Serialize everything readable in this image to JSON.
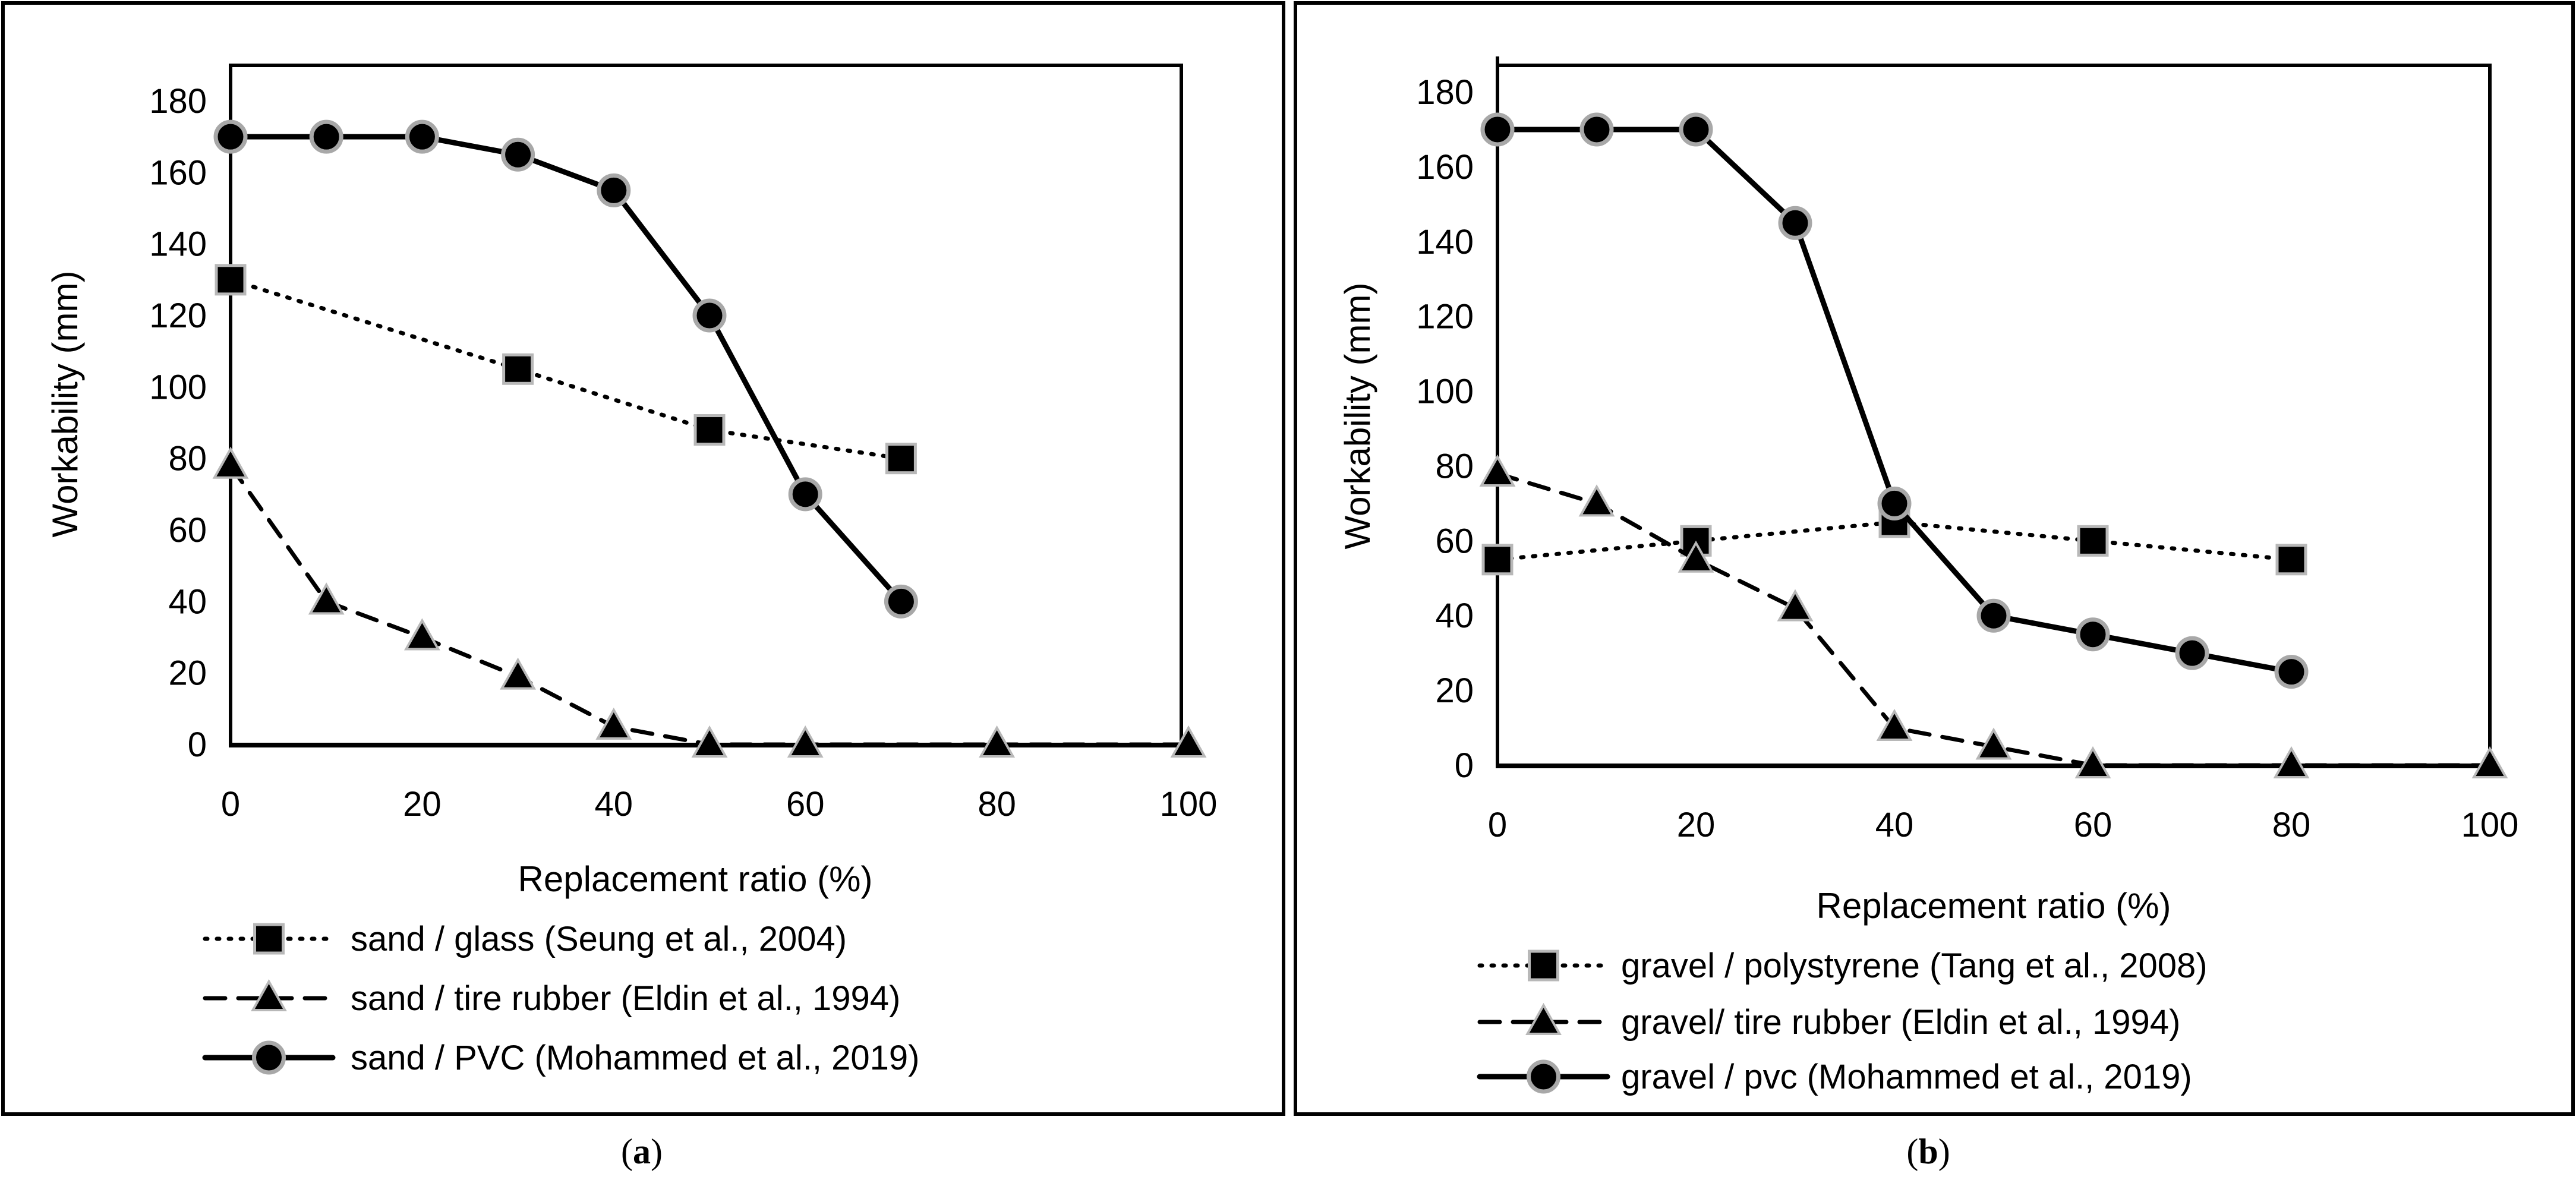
{
  "chart_data": [
    {
      "id": "a",
      "type": "line",
      "caption_letter": "a",
      "xlabel": "Replacement ratio (%)",
      "ylabel": "Workability (mm)",
      "xlim": [
        0,
        100
      ],
      "ylim": [
        0,
        180
      ],
      "xticks": [
        0,
        20,
        40,
        60,
        80,
        100
      ],
      "yticks": [
        0,
        20,
        40,
        60,
        80,
        100,
        120,
        140,
        160,
        180
      ],
      "series": [
        {
          "name": "sand / glass (Seung et al., 2004)",
          "style": "dotted",
          "marker": "square",
          "color": "#000000",
          "x": [
            0,
            30,
            50,
            70
          ],
          "y": [
            130,
            105,
            88,
            80
          ]
        },
        {
          "name": "sand / tire rubber (Eldin et al., 1994)",
          "style": "dashed",
          "marker": "triangle",
          "color": "#000000",
          "x": [
            0,
            10,
            20,
            30,
            40,
            50,
            60,
            80,
            100
          ],
          "y": [
            78,
            40,
            30,
            19,
            5,
            0,
            0,
            0,
            0
          ]
        },
        {
          "name": "sand / PVC (Mohammed et al., 2019)",
          "style": "solid",
          "marker": "circle",
          "color": "#000000",
          "x": [
            0,
            10,
            20,
            30,
            40,
            50,
            60,
            70
          ],
          "y": [
            170,
            170,
            170,
            165,
            155,
            120,
            70,
            40
          ]
        }
      ]
    },
    {
      "id": "b",
      "type": "line",
      "caption_letter": "b",
      "xlabel": "Replacement ratio (%)",
      "ylabel": "Workability  (mm)",
      "xlim": [
        0,
        100
      ],
      "ylim": [
        0,
        180
      ],
      "xticks": [
        0,
        20,
        40,
        60,
        80,
        100
      ],
      "yticks": [
        0,
        20,
        40,
        60,
        80,
        100,
        120,
        140,
        160,
        180
      ],
      "series": [
        {
          "name": "gravel / polystyrene (Tang et al., 2008)",
          "style": "dotted",
          "marker": "square",
          "color": "#000000",
          "x": [
            0,
            20,
            40,
            60,
            80
          ],
          "y": [
            55,
            60,
            65,
            60,
            55
          ]
        },
        {
          "name": "gravel/ tire rubber (Eldin et al., 1994)",
          "style": "dashed",
          "marker": "triangle",
          "color": "#000000",
          "x": [
            0,
            10,
            20,
            30,
            40,
            50,
            60,
            80,
            100
          ],
          "y": [
            78,
            70,
            55,
            42,
            10,
            5,
            0,
            0,
            0
          ]
        },
        {
          "name": "gravel / pvc (Mohammed et al., 2019)",
          "style": "solid",
          "marker": "circle",
          "color": "#000000",
          "x": [
            0,
            10,
            20,
            30,
            40,
            50,
            60,
            70,
            80
          ],
          "y": [
            170,
            170,
            170,
            145,
            70,
            40,
            35,
            30,
            25
          ]
        }
      ]
    }
  ]
}
